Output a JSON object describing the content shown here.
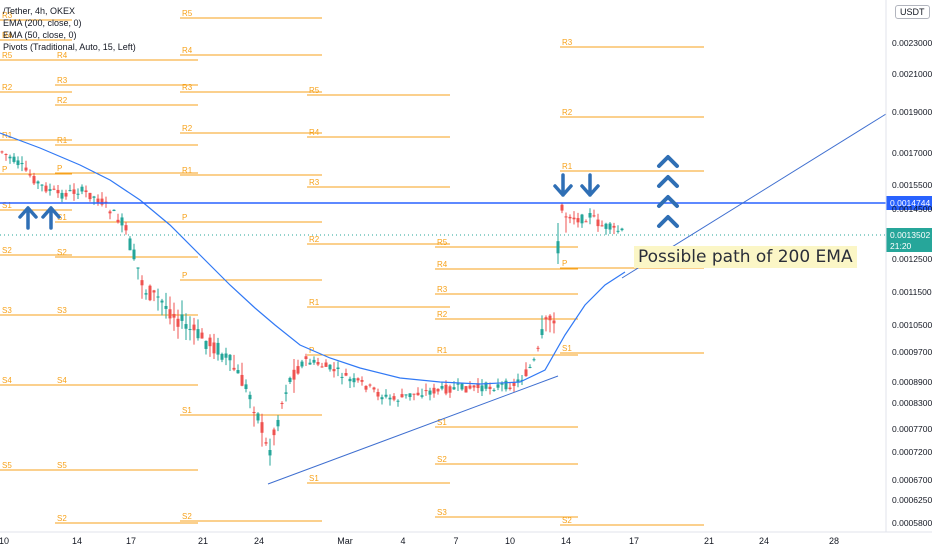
{
  "legend": {
    "symbol": "/Tether, 4h, OKEX",
    "ema200": "EMA (200, close, 0)",
    "ema50": "EMA (50, close, 0)",
    "pivots": "Pivots (Traditional, Auto, 15, Left)"
  },
  "unit_button": "USDT",
  "annotation_text": "Possible path of 200 EMA",
  "colors": {
    "up": "#26a69a",
    "down": "#ef5350",
    "pivot": "#f7a21b",
    "ema": "#3179f5",
    "trendline": "#3f6fd0",
    "arrow": "#2f6fb5",
    "level": "#2962ff"
  },
  "chart_data": {
    "type": "candlestick",
    "title": "/Tether, 4h, OKEX",
    "x_tick_labels": [
      "10",
      "14",
      "17",
      "21",
      "24",
      "Mar",
      "4",
      "7",
      "10",
      "14",
      "17",
      "21",
      "24",
      "28"
    ],
    "y_tick_labels": [
      "0.0023000",
      "0.0021000",
      "0.0019000",
      "0.0017000",
      "0.0015500",
      "0.0014500",
      "0.0012500",
      "0.0011500",
      "0.0010500",
      "0.0009700",
      "0.0008900",
      "0.0008300",
      "0.0007700",
      "0.0007200",
      "0.0006700",
      "0.0006250",
      "0.0005800"
    ],
    "y_scale": "log",
    "ylim": [
      0.00057,
      0.0026
    ],
    "current_price": {
      "value": "0.0013502",
      "countdown": "21:20"
    },
    "horizontal_level": {
      "value": "0.0014744"
    },
    "candles_summary": [
      {
        "date": "Feb 10",
        "close": 0.00168
      },
      {
        "date": "Feb 13",
        "close": 0.00152
      },
      {
        "date": "Feb 17",
        "close": 0.00138
      },
      {
        "date": "Feb 18",
        "close": 0.00108
      },
      {
        "date": "Feb 21",
        "close": 0.00098
      },
      {
        "date": "Feb 24",
        "close": 0.00068
      },
      {
        "date": "Feb 27",
        "close": 0.00093
      },
      {
        "date": "Mar 3",
        "close": 0.00085
      },
      {
        "date": "Mar 7",
        "close": 0.00087
      },
      {
        "date": "Mar 10",
        "close": 0.00091
      },
      {
        "date": "Mar 11",
        "close": 0.00104
      },
      {
        "date": "Mar 12",
        "close": 0.00142
      },
      {
        "date": "Mar 16",
        "close": 0.00135
      }
    ],
    "ema_series": [
      {
        "name": "EMA (50, close, 0)",
        "note": "smooth blue curve descending from ~0.00168 to ~0.00095 then rising to ~0.00125"
      }
    ],
    "pivot_sets": [
      {
        "labels": [
          "R3",
          "R4",
          "R5",
          "R2",
          "R1",
          "P",
          "S1",
          "S2",
          "S3",
          "S4",
          "S5"
        ]
      },
      {
        "labels": [
          "R5",
          "R4",
          "R3",
          "R2",
          "R1",
          "P",
          "S1",
          "S2"
        ]
      },
      {
        "labels": [
          "R5",
          "R4",
          "R3",
          "R2",
          "R1",
          "P",
          "S1",
          "S2"
        ]
      },
      {
        "labels": [
          "R5",
          "R4",
          "R3",
          "R2",
          "R1",
          "P",
          "S1",
          "S2",
          "S3"
        ]
      },
      {
        "labels": [
          "R3",
          "R2",
          "R1",
          "P",
          "S1",
          "S2"
        ]
      }
    ],
    "annotations": [
      "Possible path of 200 EMA"
    ]
  }
}
